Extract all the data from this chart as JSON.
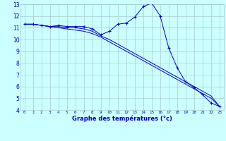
{
  "title": "Graphe des températures (°c)",
  "x_values": [
    0,
    1,
    2,
    3,
    4,
    5,
    6,
    7,
    8,
    9,
    10,
    11,
    12,
    13,
    14,
    15,
    16,
    17,
    18,
    19,
    20,
    21,
    22,
    23
  ],
  "line1": [
    11.3,
    11.3,
    11.2,
    11.1,
    11.2,
    11.1,
    11.1,
    11.1,
    10.9,
    10.4,
    10.7,
    11.3,
    11.4,
    11.9,
    12.8,
    13.1,
    12.0,
    9.3,
    7.6,
    6.4,
    5.9,
    5.3,
    4.6,
    4.3
  ],
  "line2": [
    11.3,
    11.3,
    11.2,
    11.1,
    11.1,
    11.0,
    11.0,
    10.9,
    10.7,
    10.3,
    10.0,
    9.6,
    9.2,
    8.8,
    8.4,
    8.0,
    7.6,
    7.2,
    6.8,
    6.4,
    6.0,
    5.6,
    5.2,
    4.3
  ],
  "line3": [
    11.3,
    11.3,
    11.2,
    11.1,
    11.0,
    10.9,
    10.8,
    10.7,
    10.5,
    10.2,
    9.8,
    9.4,
    9.0,
    8.6,
    8.2,
    7.8,
    7.4,
    7.0,
    6.6,
    6.2,
    5.8,
    5.4,
    5.0,
    4.3
  ],
  "line_color": "#0000cc",
  "bg_color": "#ccffff",
  "grid_color": "#aadddd",
  "ylim": [
    4,
    13
  ],
  "yticks": [
    4,
    5,
    6,
    7,
    8,
    9,
    10,
    11,
    12,
    13
  ],
  "xticks": [
    0,
    1,
    2,
    3,
    4,
    5,
    6,
    7,
    8,
    9,
    10,
    11,
    12,
    13,
    14,
    15,
    16,
    17,
    18,
    19,
    20,
    21,
    22,
    23
  ],
  "xlabel_color": "#0000cc",
  "tick_color": "#0000cc",
  "axis_label_fontsize": 6.0,
  "tick_fontsize_x": 4.2,
  "tick_fontsize_y": 5.5,
  "marker": "+",
  "linewidth": 0.7,
  "markersize": 2.5,
  "bottom_bar_color": "#0000aa",
  "bottom_bar_height": 0.13
}
